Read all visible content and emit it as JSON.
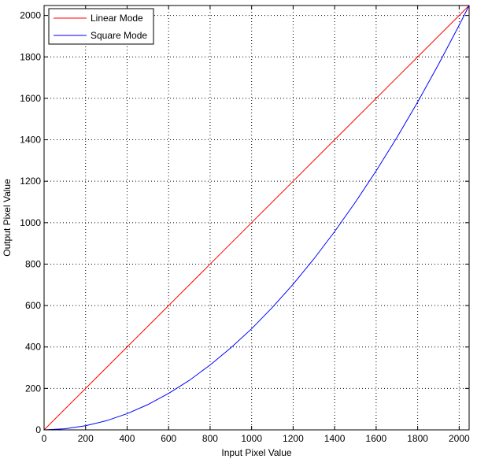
{
  "chart_data": {
    "type": "line",
    "title": "",
    "xlabel": "Input Pixel Value",
    "ylabel": "Output Pixel Value",
    "xlim": [
      0,
      2048
    ],
    "ylim": [
      0,
      2048
    ],
    "xticks": [
      0,
      200,
      400,
      600,
      800,
      1000,
      1200,
      1400,
      1600,
      1800,
      2000
    ],
    "yticks": [
      0,
      200,
      400,
      600,
      800,
      1000,
      1200,
      1400,
      1600,
      1800,
      2000
    ],
    "grid": true,
    "legend_position": "top-left",
    "series": [
      {
        "name": "Linear Mode",
        "color": "#ff0000",
        "x": [
          0,
          200,
          400,
          600,
          800,
          1000,
          1200,
          1400,
          1600,
          1800,
          2000,
          2048
        ],
        "y": [
          0,
          200,
          400,
          600,
          800,
          1000,
          1200,
          1400,
          1600,
          1800,
          2000,
          2048
        ]
      },
      {
        "name": "Square Mode",
        "color": "#0000ff",
        "x": [
          0,
          100,
          200,
          300,
          400,
          500,
          600,
          700,
          800,
          900,
          1000,
          1100,
          1200,
          1300,
          1400,
          1500,
          1600,
          1700,
          1800,
          1900,
          2000,
          2048
        ],
        "y": [
          0,
          5,
          20,
          44,
          78,
          122,
          176,
          239,
          313,
          396,
          488,
          591,
          703,
          825,
          957,
          1099,
          1250,
          1411,
          1582,
          1763,
          1953,
          2048
        ]
      }
    ]
  }
}
